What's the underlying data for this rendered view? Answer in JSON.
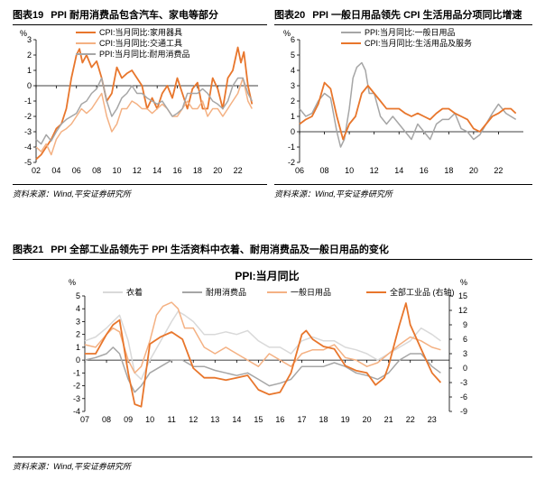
{
  "fig19": {
    "number": "图表19",
    "title": "PPI 耐用消费品包含汽车、家电等部分",
    "source": "资料来源：Wind,平安证券研究所"
  },
  "fig20": {
    "number": "图表20",
    "title": "PPI 一般日用品领先 CPI 生活用品分项同比增速",
    "source": "资料来源：Wind,平安证券研究所"
  },
  "fig21": {
    "number": "图表21",
    "title": "PPI 全部工业品领先于 PPI 生活资料中衣着、耐用消费品及一般日用品的变化",
    "source": "资料来源：Wind,平安证券研究所"
  },
  "chart_data": [
    {
      "id": "fig19",
      "type": "line",
      "title": "",
      "ylabel": "%",
      "ylim": [
        -5,
        3
      ],
      "yticks": [
        3,
        2,
        1,
        0,
        -1,
        -2,
        -3,
        -4,
        -5
      ],
      "xlim": [
        2002,
        2024
      ],
      "xticks": [
        "02",
        "04",
        "06",
        "08",
        "10",
        "12",
        "14",
        "16",
        "18",
        "20",
        "22"
      ],
      "legend_position": "top-left",
      "series": [
        {
          "name": "CPI:当月同比:家用器具",
          "color": "#E8762C",
          "x": [
            2002,
            2002.5,
            2003,
            2003.5,
            2004,
            2004.5,
            2005,
            2005.5,
            2006,
            2006.3,
            2006.6,
            2007,
            2007.5,
            2008,
            2008.5,
            2009,
            2009.5,
            2010,
            2010.5,
            2011,
            2011.5,
            2012,
            2012.5,
            2013,
            2013.5,
            2014,
            2014.5,
            2015,
            2015.5,
            2016,
            2016.5,
            2017,
            2017.5,
            2018,
            2018.5,
            2019,
            2019.5,
            2020,
            2020.5,
            2021,
            2021.5,
            2022,
            2022.3,
            2022.6,
            2023,
            2023.4
          ],
          "y": [
            -4.8,
            -4.5,
            -4.0,
            -3.5,
            -2.8,
            -2.5,
            -1.5,
            0.5,
            2.0,
            2.4,
            1.5,
            2.0,
            1.2,
            1.6,
            0.5,
            -1.0,
            -0.5,
            1.2,
            0.5,
            0.8,
            1.0,
            0.5,
            0.0,
            -1.5,
            -0.8,
            -1.5,
            -0.5,
            0.0,
            -0.8,
            0.5,
            -0.5,
            -1.5,
            -0.2,
            0.2,
            -1.5,
            -1.5,
            0.5,
            -0.2,
            -1.5,
            0.5,
            1.0,
            2.5,
            1.5,
            2.2,
            0.0,
            -1.2
          ]
        },
        {
          "name": "CPI:当月同比:交通工具",
          "color": "#F4B183",
          "x": [
            2002,
            2002.5,
            2003,
            2003.5,
            2004,
            2004.5,
            2005,
            2005.5,
            2006,
            2006.5,
            2007,
            2007.5,
            2008,
            2008.5,
            2009,
            2009.5,
            2010,
            2010.5,
            2011,
            2011.5,
            2012,
            2012.5,
            2013,
            2013.5,
            2014,
            2014.5,
            2015,
            2015.5,
            2016,
            2016.5,
            2017,
            2017.5,
            2018,
            2018.5,
            2019,
            2019.5,
            2020,
            2020.5,
            2021,
            2021.5,
            2022,
            2022.5,
            2023,
            2023.4
          ],
          "y": [
            -4.0,
            -4.3,
            -3.8,
            -4.5,
            -3.5,
            -3.0,
            -2.8,
            -2.5,
            -2.0,
            -1.5,
            -1.8,
            -1.5,
            -1.0,
            -0.5,
            -2.0,
            -3.0,
            -2.5,
            -1.5,
            -1.5,
            -1.0,
            -1.2,
            -1.5,
            -1.5,
            -1.8,
            -1.5,
            -1.2,
            -1.5,
            -2.0,
            -2.0,
            -1.5,
            -1.0,
            -1.5,
            -1.5,
            -1.0,
            -2.0,
            -1.5,
            -1.5,
            -2.0,
            -1.5,
            -1.0,
            -0.5,
            0.5,
            -1.0,
            -1.5
          ]
        },
        {
          "name": "PPI:当月同比:耐用消费品",
          "color": "#A6A6A6",
          "x": [
            2002,
            2002.5,
            2003,
            2003.5,
            2004,
            2004.5,
            2005,
            2005.5,
            2006,
            2006.5,
            2007,
            2007.5,
            2008,
            2008.5,
            2009,
            2009.5,
            2010,
            2010.5,
            2011,
            2011.5,
            2012,
            2012.5,
            2013,
            2013.5,
            2014,
            2014.5,
            2015,
            2015.5,
            2016,
            2016.5,
            2017,
            2017.5,
            2018,
            2018.5,
            2019,
            2019.5,
            2020,
            2020.5,
            2021,
            2021.5,
            2022,
            2022.5,
            2023,
            2023.4
          ],
          "y": [
            -3.5,
            -3.8,
            -3.2,
            -3.6,
            -3.0,
            -2.5,
            -2.2,
            -2.0,
            -1.8,
            -1.2,
            -1.0,
            -0.5,
            -0.2,
            0.5,
            -1.0,
            -2.0,
            -1.5,
            -0.8,
            -0.5,
            0.0,
            -0.5,
            -0.5,
            -0.8,
            -1.0,
            -1.2,
            -1.0,
            -1.5,
            -2.0,
            -1.8,
            -1.5,
            -0.5,
            -0.5,
            -0.5,
            -0.2,
            -0.5,
            -1.0,
            -1.2,
            -1.5,
            -1.0,
            0.0,
            0.5,
            0.5,
            -0.5,
            -1.0
          ]
        }
      ]
    },
    {
      "id": "fig20",
      "type": "line",
      "title": "",
      "ylabel": "%",
      "ylim": [
        -2,
        6
      ],
      "yticks": [
        6,
        5,
        4,
        3,
        2,
        1,
        0,
        -1,
        -2
      ],
      "xlim": [
        2006,
        2024
      ],
      "xticks": [
        "06",
        "08",
        "10",
        "12",
        "14",
        "16",
        "18",
        "20",
        "22"
      ],
      "legend_position": "top-left",
      "series": [
        {
          "name": "PPI:当月同比:一般日用品",
          "color": "#A6A6A6",
          "x": [
            2006,
            2006.5,
            2007,
            2007.5,
            2008,
            2008.5,
            2009,
            2009.3,
            2009.6,
            2010,
            2010.3,
            2010.6,
            2011,
            2011.3,
            2011.6,
            2012,
            2012.5,
            2013,
            2013.5,
            2014,
            2014.5,
            2015,
            2015.5,
            2016,
            2016.5,
            2017,
            2017.5,
            2018,
            2018.5,
            2019,
            2019.5,
            2020,
            2020.5,
            2021,
            2021.5,
            2022,
            2022.3,
            2022.6,
            2023,
            2023.4
          ],
          "y": [
            1.5,
            1.0,
            1.2,
            2.0,
            2.5,
            2.2,
            0.0,
            -1.0,
            -0.5,
            1.5,
            3.5,
            4.2,
            4.5,
            4.0,
            2.5,
            2.5,
            1.0,
            0.5,
            1.0,
            0.5,
            0.0,
            -0.5,
            0.5,
            0.0,
            -0.5,
            0.5,
            0.8,
            0.8,
            1.2,
            0.2,
            0.0,
            -0.5,
            -0.2,
            0.5,
            1.2,
            1.8,
            1.5,
            1.2,
            1.0,
            0.8
          ]
        },
        {
          "name": "CPI:当月同比:生活用品及服务",
          "color": "#E8762C",
          "x": [
            2006,
            2006.5,
            2007,
            2007.5,
            2008,
            2008.5,
            2009,
            2009.5,
            2010,
            2010.5,
            2011,
            2011.5,
            2012,
            2012.5,
            2013,
            2013.5,
            2014,
            2014.5,
            2015,
            2015.5,
            2016,
            2016.5,
            2017,
            2017.5,
            2018,
            2018.5,
            2019,
            2019.5,
            2020,
            2020.5,
            2021,
            2021.5,
            2022,
            2022.5,
            2023,
            2023.4
          ],
          "y": [
            0.5,
            0.8,
            1.0,
            1.8,
            3.2,
            2.8,
            1.0,
            -0.5,
            0.5,
            1.0,
            2.5,
            3.0,
            2.5,
            2.0,
            1.5,
            1.5,
            1.5,
            1.2,
            1.0,
            1.2,
            1.0,
            0.8,
            1.2,
            1.5,
            1.5,
            1.2,
            1.0,
            0.8,
            0.2,
            0.0,
            0.5,
            1.0,
            1.2,
            1.5,
            1.5,
            1.2
          ]
        }
      ]
    },
    {
      "id": "fig21",
      "type": "line",
      "title": "PPI:当月同比",
      "ylabel": "%",
      "y2label": "%",
      "ylim": [
        -4,
        5
      ],
      "yticks": [
        5,
        4,
        3,
        2,
        1,
        0,
        -1,
        -2,
        -3,
        -4
      ],
      "y2lim": [
        -9,
        15
      ],
      "y2ticks": [
        15,
        12,
        9,
        6,
        3,
        0,
        -3,
        -6,
        -9
      ],
      "xlim": [
        2007,
        2023.8
      ],
      "xticks": [
        "07",
        "08",
        "09",
        "10",
        "11",
        "12",
        "13",
        "14",
        "15",
        "16",
        "17",
        "18",
        "19",
        "20",
        "21",
        "22",
        "23"
      ],
      "legend_position": "top",
      "series": [
        {
          "name": "衣着",
          "axis": "left",
          "color": "#D9D9D9",
          "x": [
            2007,
            2007.5,
            2008,
            2008.3,
            2008.6,
            2009,
            2009.3,
            2009.6,
            2010,
            2010.5,
            2011,
            2011.3,
            2011.6,
            2012,
            2012.5,
            2013,
            2013.5,
            2014,
            2014.5,
            2015,
            2015.5,
            2016,
            2016.5,
            2017,
            2017.5,
            2018,
            2018.5,
            2019,
            2019.5,
            2020,
            2020.5,
            2021,
            2021.5,
            2022,
            2022.5,
            2023,
            2023.4
          ],
          "y": [
            1.5,
            1.8,
            2.5,
            3.0,
            3.5,
            1.5,
            -1.0,
            -1.5,
            0.0,
            1.5,
            3.0,
            3.8,
            3.5,
            3.0,
            2.0,
            2.0,
            2.2,
            2.0,
            2.3,
            1.5,
            1.0,
            1.0,
            0.5,
            1.5,
            1.8,
            1.5,
            1.5,
            1.0,
            0.8,
            0.5,
            0.0,
            0.5,
            1.0,
            1.5,
            2.5,
            2.0,
            1.5
          ]
        },
        {
          "name": "耐用消费品",
          "axis": "left",
          "color": "#A6A6A6",
          "x": [
            2007,
            2007.5,
            2008,
            2008.3,
            2008.6,
            2009,
            2009.3,
            2009.6,
            2010,
            2010.5,
            2011,
            2011.5,
            2012,
            2012.5,
            2013,
            2013.5,
            2014,
            2014.5,
            2015,
            2015.5,
            2016,
            2016.5,
            2017,
            2017.5,
            2018,
            2018.5,
            2019,
            2019.5,
            2020,
            2020.5,
            2021,
            2021.5,
            2022,
            2022.5,
            2023,
            2023.4
          ],
          "y": [
            0.0,
            0.2,
            0.5,
            1.0,
            0.5,
            -1.5,
            -2.5,
            -2.0,
            -1.0,
            -0.5,
            0.0,
            0.0,
            -0.5,
            -0.5,
            -0.8,
            -1.0,
            -1.2,
            -1.0,
            -1.5,
            -2.0,
            -1.8,
            -1.5,
            -0.5,
            -0.5,
            -0.5,
            -0.2,
            -0.5,
            -1.0,
            -1.2,
            -1.5,
            -1.0,
            0.0,
            0.5,
            0.5,
            -0.5,
            -1.0
          ]
        },
        {
          "name": "一般日用品",
          "axis": "left",
          "color": "#F4B183",
          "x": [
            2007,
            2007.5,
            2008,
            2008.3,
            2008.6,
            2009,
            2009.3,
            2009.6,
            2010,
            2010.3,
            2010.6,
            2011,
            2011.3,
            2011.6,
            2012,
            2012.5,
            2013,
            2013.5,
            2014,
            2014.5,
            2015,
            2015.5,
            2016,
            2016.5,
            2017,
            2017.5,
            2018,
            2018.5,
            2019,
            2019.5,
            2020,
            2020.5,
            2021,
            2021.5,
            2022,
            2022.5,
            2023,
            2023.4
          ],
          "y": [
            1.2,
            1.0,
            2.0,
            2.5,
            2.2,
            0.0,
            -1.0,
            -0.5,
            1.5,
            3.5,
            4.2,
            4.5,
            4.0,
            2.5,
            2.5,
            1.0,
            0.5,
            1.0,
            0.5,
            0.0,
            -0.5,
            0.5,
            0.0,
            -0.5,
            0.5,
            0.8,
            0.8,
            1.2,
            0.2,
            0.0,
            -0.5,
            -0.2,
            0.5,
            1.2,
            1.8,
            1.5,
            1.0,
            0.8
          ]
        },
        {
          "name": "全部工业品 (右轴)",
          "axis": "right",
          "color": "#E8762C",
          "x": [
            2007,
            2007.5,
            2008,
            2008.3,
            2008.6,
            2009,
            2009.3,
            2009.6,
            2010,
            2010.5,
            2011,
            2011.5,
            2012,
            2012.5,
            2013,
            2013.5,
            2014,
            2014.5,
            2015,
            2015.5,
            2016,
            2016.5,
            2017,
            2017.2,
            2017.5,
            2018,
            2018.5,
            2019,
            2019.5,
            2020,
            2020.4,
            2020.8,
            2021,
            2021.5,
            2021.8,
            2022,
            2022.5,
            2023,
            2023.4
          ],
          "y": [
            3.0,
            3.0,
            7.0,
            9.0,
            10.0,
            -1.0,
            -7.5,
            -8.0,
            5.0,
            6.5,
            7.5,
            6.0,
            0.0,
            -2.0,
            -2.0,
            -2.5,
            -2.0,
            -1.5,
            -4.5,
            -5.5,
            -5.0,
            -1.0,
            7.0,
            7.8,
            6.0,
            4.5,
            4.0,
            0.5,
            -0.5,
            -1.0,
            -3.5,
            -2.0,
            0.5,
            9.0,
            13.5,
            9.0,
            4.0,
            -1.0,
            -3.0
          ]
        }
      ]
    }
  ]
}
